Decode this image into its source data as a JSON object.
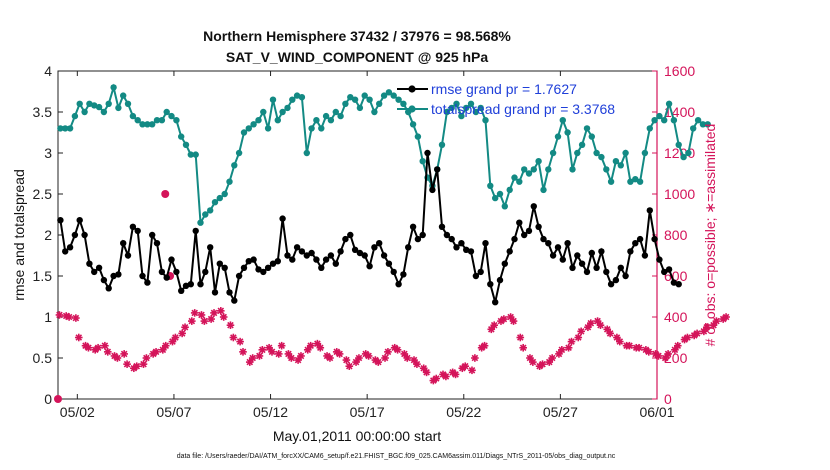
{
  "chart_data": {
    "type": "line",
    "title": "Northern Hemisphere 37432 / 37976 = 98.568%",
    "subtitle": "SAT_V_WIND_COMPONENT @ 925 hPa",
    "xlabel": "May.01,2011 00:00:00 start",
    "ylabel_left": "rmse and totalspread",
    "ylabel_right": "# of obs: o=possible; ∗=assimilated",
    "footer": "data file: /Users/raeder/DAI/ATM_forcXX/CAM6_setup/f.e21.FHIST_BGC.f09_025.CAM6assim.011/Diags_NTrS_2011-05/obs_diag_output.nc",
    "xlim": [
      0,
      31
    ],
    "ylim_left": [
      0,
      4
    ],
    "ylim_right": [
      0,
      1600
    ],
    "grid": false,
    "legend_position": "top-right",
    "x_ticks": [
      {
        "x": 1,
        "label": "05/02"
      },
      {
        "x": 6,
        "label": "05/07"
      },
      {
        "x": 11,
        "label": "05/12"
      },
      {
        "x": 16,
        "label": "05/17"
      },
      {
        "x": 21,
        "label": "05/22"
      },
      {
        "x": 26,
        "label": "05/27"
      },
      {
        "x": 31,
        "label": "06/01"
      }
    ],
    "y_ticks_left": [
      {
        "v": 0,
        "label": "0"
      },
      {
        "v": 0.5,
        "label": "0.5"
      },
      {
        "v": 1,
        "label": "1"
      },
      {
        "v": 1.5,
        "label": "1.5"
      },
      {
        "v": 2,
        "label": "2"
      },
      {
        "v": 2.5,
        "label": "2.5"
      },
      {
        "v": 3,
        "label": "3"
      },
      {
        "v": 3.5,
        "label": "3.5"
      },
      {
        "v": 4,
        "label": "4"
      }
    ],
    "y_ticks_right": [
      {
        "v": 0,
        "label": "0"
      },
      {
        "v": 200,
        "label": "200"
      },
      {
        "v": 400,
        "label": "400"
      },
      {
        "v": 600,
        "label": "600"
      },
      {
        "v": 800,
        "label": "800"
      },
      {
        "v": 1000,
        "label": "1000"
      },
      {
        "v": 1200,
        "label": "1200"
      },
      {
        "v": 1400,
        "label": "1400"
      },
      {
        "v": 1600,
        "label": "1600"
      }
    ],
    "colors": {
      "rmse": "#000000",
      "spread": "#138a84",
      "obs": "#d4145a",
      "right_axis": "#d4145a",
      "legend_text": "#1f3fd9"
    },
    "dt": 0.25,
    "series": [
      {
        "name": "rmse grand pr = 1.7627",
        "axis": "left",
        "values": [
          2.18,
          1.8,
          1.85,
          2.0,
          2.18,
          2.0,
          1.65,
          1.55,
          1.6,
          1.45,
          1.35,
          1.5,
          1.52,
          1.9,
          1.75,
          2.1,
          2.05,
          1.5,
          1.42,
          2.0,
          1.9,
          1.55,
          1.48,
          1.7,
          1.55,
          1.32,
          1.38,
          1.4,
          2.05,
          1.4,
          1.55,
          1.85,
          1.3,
          1.65,
          1.6,
          1.3,
          1.2,
          1.5,
          1.6,
          1.68,
          1.7,
          1.58,
          1.55,
          1.6,
          1.65,
          1.68,
          2.2,
          1.75,
          1.7,
          1.85,
          1.8,
          1.75,
          1.78,
          1.7,
          1.6,
          1.7,
          1.75,
          1.65,
          1.8,
          1.95,
          2.0,
          1.82,
          1.78,
          1.75,
          1.62,
          1.85,
          1.9,
          1.75,
          1.65,
          1.55,
          1.4,
          1.52,
          1.85,
          2.1,
          1.95,
          2.0,
          3.0,
          2.55,
          2.8,
          2.1,
          2.0,
          1.95,
          1.85,
          1.9,
          1.82,
          1.8,
          1.5,
          1.55,
          1.9,
          1.4,
          1.18,
          1.45,
          1.65,
          1.8,
          1.95,
          2.15,
          2.0,
          2.05,
          2.35,
          2.1,
          1.95,
          1.9,
          1.75,
          1.85,
          1.7,
          1.9,
          1.6,
          1.75,
          1.65,
          1.55,
          1.78,
          1.6,
          1.8,
          1.55,
          1.4,
          1.45,
          1.6,
          1.5,
          1.8,
          1.9,
          1.95,
          1.75,
          2.3,
          1.95,
          1.7,
          1.55,
          1.58,
          1.42,
          1.4
        ],
        "legend_label": "rmse grand pr = 1.7627"
      },
      {
        "name": "totalspread grand pr = 3.3768",
        "axis": "left",
        "values": [
          3.3,
          3.3,
          3.3,
          3.45,
          3.6,
          3.5,
          3.6,
          3.58,
          3.56,
          3.5,
          3.6,
          3.8,
          3.55,
          3.7,
          3.6,
          3.45,
          3.4,
          3.35,
          3.35,
          3.35,
          3.4,
          3.4,
          3.5,
          3.45,
          3.4,
          3.2,
          3.1,
          2.98,
          2.98,
          2.15,
          2.25,
          2.3,
          2.4,
          2.45,
          2.5,
          2.65,
          2.85,
          3.0,
          3.25,
          3.3,
          3.35,
          3.4,
          3.5,
          3.3,
          3.65,
          3.4,
          3.5,
          3.55,
          3.65,
          3.7,
          3.68,
          3.0,
          3.3,
          3.4,
          3.3,
          3.45,
          3.4,
          3.5,
          3.45,
          3.6,
          3.68,
          3.65,
          3.55,
          3.7,
          3.65,
          3.5,
          3.6,
          3.7,
          3.74,
          3.7,
          3.65,
          3.6,
          3.5,
          3.35,
          3.2,
          2.9,
          2.7,
          2.6,
          2.8,
          3.1,
          3.5,
          3.55,
          3.6,
          3.45,
          3.55,
          3.6,
          3.5,
          3.55,
          3.4,
          2.6,
          2.45,
          2.5,
          2.35,
          2.55,
          2.7,
          2.65,
          2.8,
          2.75,
          2.8,
          2.9,
          2.55,
          2.8,
          3.0,
          3.2,
          3.4,
          3.25,
          2.8,
          3.0,
          3.1,
          3.3,
          3.2,
          3.0,
          2.95,
          2.8,
          2.65,
          2.9,
          2.85,
          3.0,
          2.65,
          2.68,
          2.65,
          3.0,
          3.3,
          3.4,
          3.45,
          3.4,
          3.6,
          3.4,
          3.1,
          2.95,
          3.0,
          3.3,
          3.4,
          3.35,
          3.35
        ],
        "legend_label": "totalspread grand pr = 3.3768"
      },
      {
        "name": "assimilated",
        "axis": "right",
        "marker": "asterisk",
        "values": [
          410,
          405,
          400,
          395,
          300,
          260,
          250,
          240,
          250,
          260,
          230,
          210,
          200,
          220,
          170,
          150,
          160,
          170,
          200,
          220,
          230,
          240,
          260,
          280,
          300,
          320,
          350,
          380,
          420,
          410,
          380,
          390,
          420,
          430,
          400,
          360,
          300,
          280,
          230,
          180,
          200,
          210,
          240,
          250,
          230,
          220,
          260,
          220,
          200,
          190,
          210,
          240,
          260,
          270,
          250,
          210,
          200,
          230,
          220,
          190,
          160,
          180,
          200,
          220,
          210,
          190,
          180,
          200,
          230,
          250,
          240,
          220,
          200,
          190,
          170,
          150,
          130,
          90,
          100,
          120,
          110,
          130,
          120,
          150,
          160,
          140,
          200,
          250,
          260,
          340,
          360,
          380,
          390,
          400,
          380,
          300,
          250,
          200,
          180,
          160,
          170,
          180,
          200,
          220,
          240,
          250,
          280,
          300,
          330,
          350,
          370,
          380,
          360,
          340,
          320,
          300,
          280,
          260,
          260,
          250,
          250,
          240,
          230,
          220,
          210,
          200,
          220,
          240,
          260,
          290,
          300,
          310,
          320,
          330,
          350,
          360,
          380,
          390,
          400
        ]
      },
      {
        "name": "possible",
        "axis": "right",
        "marker": "circle",
        "values": [
          0
        ]
      }
    ]
  }
}
